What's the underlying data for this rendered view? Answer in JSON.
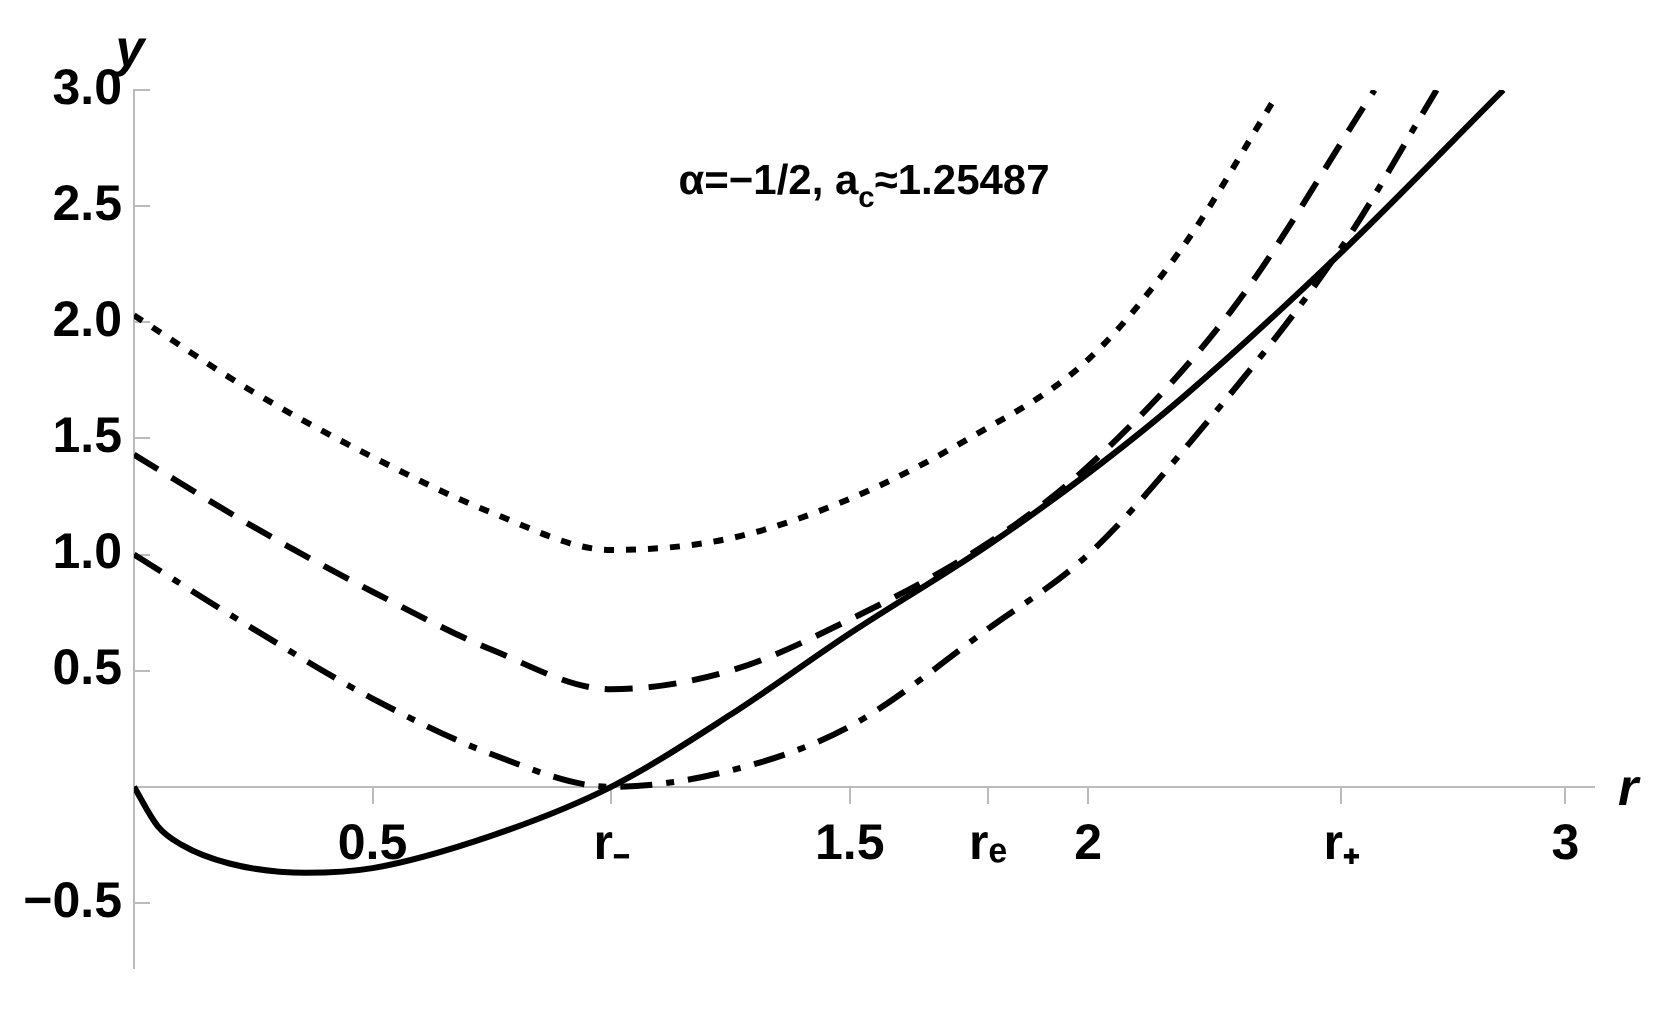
{
  "chart_data": {
    "type": "line",
    "xlabel": "r",
    "ylabel": "y",
    "annotations": [
      "α=−1/2, a$_{c}$≈1.25487"
    ],
    "xlim": [
      0,
      3.06
    ],
    "ylim": [
      -0.78,
      3
    ],
    "xticks": [
      0.5,
      {
        "value": 1,
        "label": "r₋"
      },
      1.5,
      {
        "value": 1.79,
        "label": "rₑ"
      },
      2,
      {
        "value": 2.53,
        "label": "r₊"
      },
      3
    ],
    "yticks": [
      {
        "value": -0.5,
        "label": "−0.5"
      },
      {
        "value": 0.5,
        "label": "0.5"
      },
      {
        "value": 1,
        "label": "1.0"
      },
      {
        "value": 1.5,
        "label": "1.5"
      },
      {
        "value": 2,
        "label": "2.0"
      },
      {
        "value": 2.5,
        "label": "2.5"
      },
      {
        "value": 3,
        "label": "3.0"
      }
    ],
    "grid": false,
    "legend": false,
    "series": [
      {
        "color": "#000000",
        "line_style": "dotted",
        "x": [
          0,
          0.25,
          0.5,
          0.75,
          1.0,
          1.25,
          1.5,
          1.75,
          2.0,
          2.2,
          2.39
        ],
        "values": [
          2.03,
          1.7,
          1.42,
          1.18,
          1.02,
          1.07,
          1.24,
          1.5,
          1.84,
          2.33,
          2.96
        ]
      },
      {
        "color": "#000000",
        "line_style": "dashed",
        "x": [
          0,
          0.25,
          0.5,
          0.75,
          1.0,
          1.25,
          1.5,
          1.79,
          2.0,
          2.3,
          2.6
        ],
        "values": [
          1.43,
          1.12,
          0.84,
          0.59,
          0.42,
          0.5,
          0.72,
          1.05,
          1.38,
          2.05,
          3.0
        ]
      },
      {
        "color": "#000000",
        "line_style": "dashdot",
        "x": [
          0,
          0.25,
          0.5,
          0.75,
          1.0,
          1.25,
          1.5,
          1.79,
          2.0,
          2.2,
          2.53,
          2.73
        ],
        "values": [
          1.0,
          0.68,
          0.38,
          0.14,
          0,
          0.07,
          0.26,
          0.68,
          1.0,
          1.45,
          2.32,
          3.0
        ]
      },
      {
        "color": "#000000",
        "line_style": "solid",
        "x": [
          0,
          0.05,
          0.1,
          0.2,
          0.36,
          0.5,
          0.75,
          1.0,
          1.25,
          1.5,
          1.79,
          2.0,
          2.2,
          2.53,
          2.87
        ],
        "values": [
          0,
          -0.17,
          -0.25,
          -0.33,
          -0.37,
          -0.35,
          -0.21,
          0,
          0.31,
          0.66,
          1.04,
          1.35,
          1.68,
          2.3,
          3.0
        ]
      }
    ]
  }
}
